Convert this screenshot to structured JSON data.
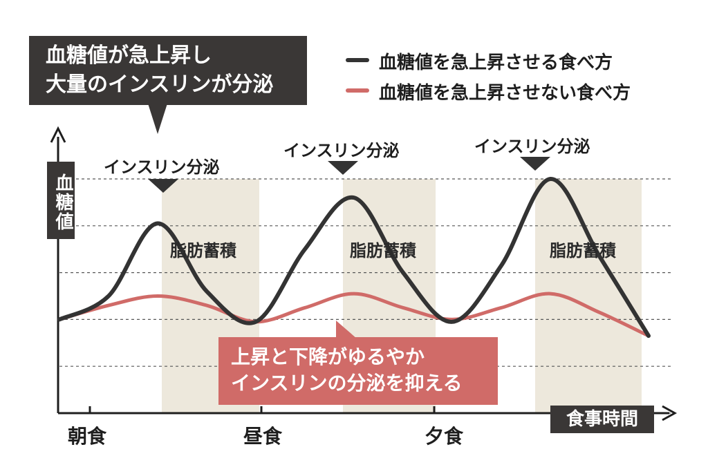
{
  "chart_data": {
    "type": "line",
    "title": "",
    "xlabel": "食事時間",
    "ylabel": "血糖値",
    "x_ticks": [
      "朝食",
      "昼食",
      "夕食"
    ],
    "x": [
      0,
      2,
      4,
      6,
      8,
      10,
      12,
      14,
      16,
      18,
      20,
      22,
      24
    ],
    "ylim": [
      0,
      100
    ],
    "grid": "horizontal dashed",
    "legend_position": "top-right",
    "series": [
      {
        "name": "血糖値を急上昇させる食べ方",
        "color": "#333333",
        "values": [
          40,
          50,
          81,
          52,
          39,
          70,
          92,
          60,
          39,
          63,
          100,
          67,
          33
        ]
      },
      {
        "name": "血糖値を急上昇させない食べ方",
        "color": "#d06b68",
        "values": [
          40,
          46,
          50,
          46,
          39,
          45,
          51,
          45,
          40,
          45,
          51,
          43,
          33
        ]
      }
    ],
    "annotations": {
      "insulin_label": "インスリン分泌",
      "fat_label": "脂肪蓄積",
      "top_callout": [
        "血糖値が急上昇し",
        "大量のインスリンが分泌"
      ],
      "bottom_callout": [
        "上昇と下降がゆるやか",
        "インスリンの分泌を抑える"
      ]
    },
    "colors": {
      "dark_box": "#3a3736",
      "red_box": "#d06b68",
      "fat_band": "#ede8dc",
      "axis": "#1e1e1e",
      "grid": "#555555"
    }
  }
}
